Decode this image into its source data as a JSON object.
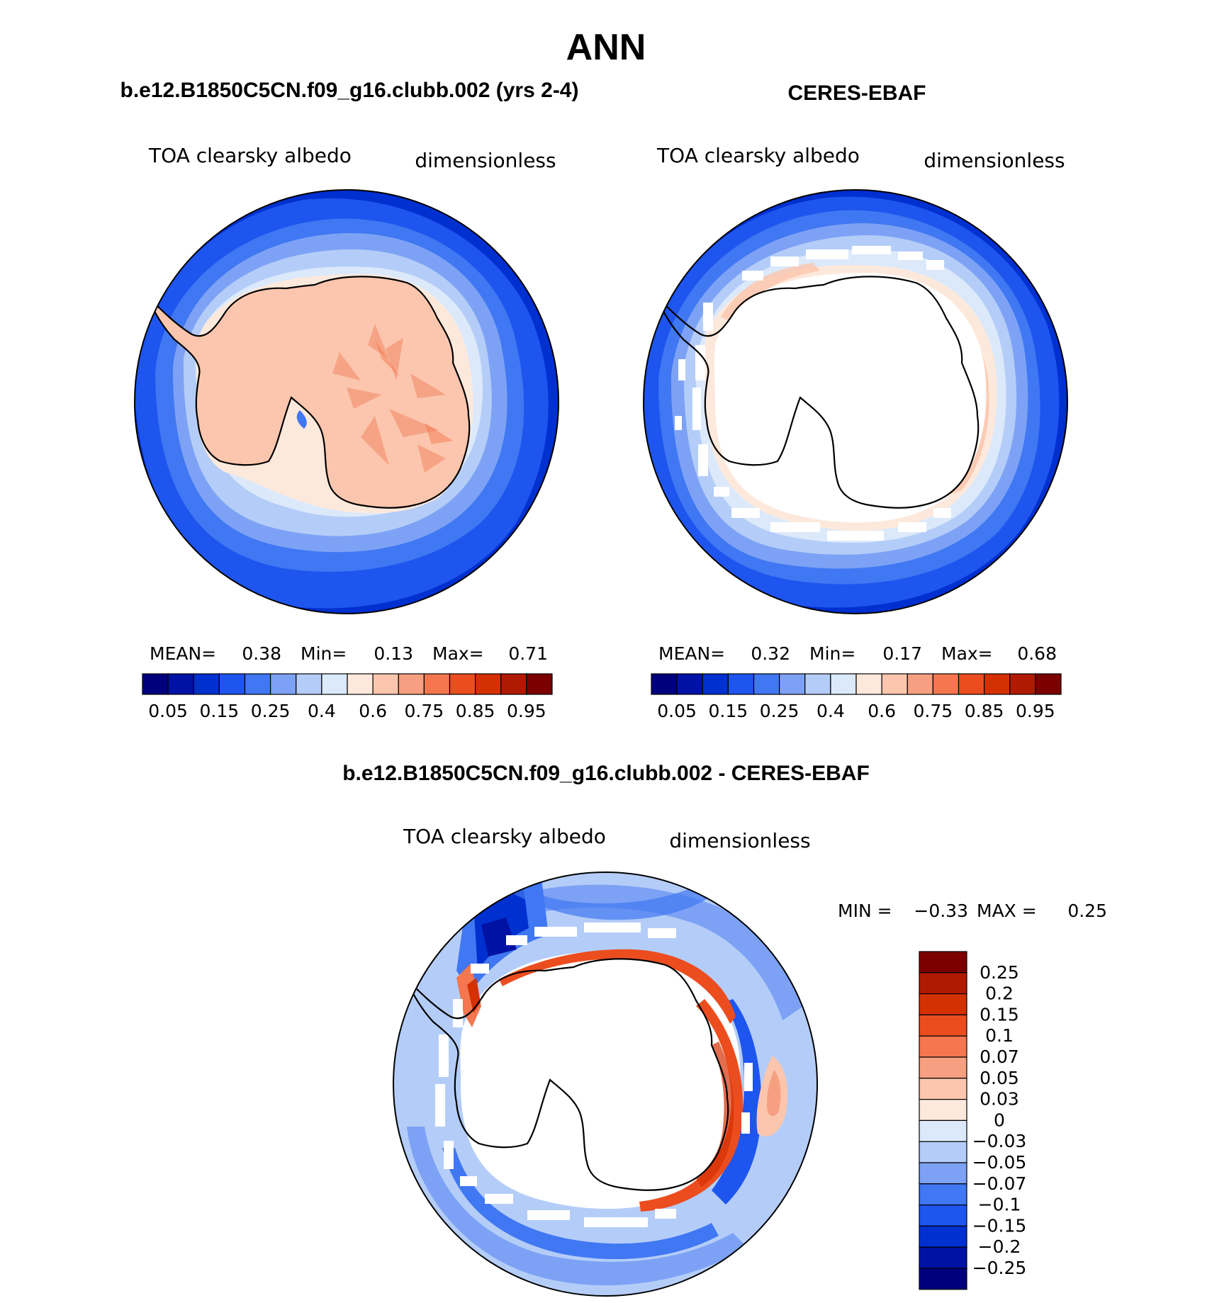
{
  "page_title": "ANN",
  "panels": {
    "model": {
      "title": "b.e12.B1850C5CN.f09_g16.clubb.002 (yrs 2-4)",
      "variable": "TOA clearsky albedo",
      "units": "dimensionless",
      "stats": {
        "mean_label": "MEAN=",
        "mean": "0.38",
        "min_label": "Min=",
        "min": "0.13",
        "max_label": "Max=",
        "max": "0.71"
      }
    },
    "obs": {
      "title": "CERES-EBAF",
      "variable": "TOA clearsky albedo",
      "units": "dimensionless",
      "stats": {
        "mean_label": "MEAN=",
        "mean": "0.32",
        "min_label": "Min=",
        "min": "0.17",
        "max_label": "Max=",
        "max": "0.68"
      }
    },
    "diff": {
      "title": "b.e12.B1850C5CN.f09_g16.clubb.002 - CERES-EBAF",
      "variable": "TOA clearsky albedo",
      "units": "dimensionless",
      "stats": {
        "min_label": "MIN =",
        "min": "−0.33",
        "max_label": "MAX =",
        "max": "0.25"
      }
    }
  },
  "colorbars": {
    "abs": {
      "tick_labels": [
        "0.05",
        "0.15",
        "0.25",
        "0.4",
        "0.6",
        "0.75",
        "0.85",
        "0.95"
      ],
      "colors": [
        "#00007d",
        "#0012a4",
        "#0030d0",
        "#1d55ee",
        "#4077f2",
        "#7da2f5",
        "#b4cdf8",
        "#dce9fb",
        "#fde9dc",
        "#fbc6ad",
        "#f6a081",
        "#f4774f",
        "#ec4d1f",
        "#d43103",
        "#b11a02",
        "#7d0000"
      ]
    },
    "diff": {
      "tick_labels": [
        "0.25",
        "0.2",
        "0.15",
        "0.1",
        "0.07",
        "0.05",
        "0.03",
        "0",
        "−0.03",
        "−0.05",
        "−0.07",
        "−0.1",
        "−0.15",
        "−0.2",
        "−0.25"
      ],
      "colors": [
        "#7d0000",
        "#b11a02",
        "#d43103",
        "#ec4d1f",
        "#f4774f",
        "#f6a081",
        "#fbc6ad",
        "#fde9dc",
        "#dce9fb",
        "#b4cdf8",
        "#7da2f5",
        "#4077f2",
        "#1d55ee",
        "#0030d0",
        "#0012a4",
        "#00007d"
      ]
    }
  }
}
